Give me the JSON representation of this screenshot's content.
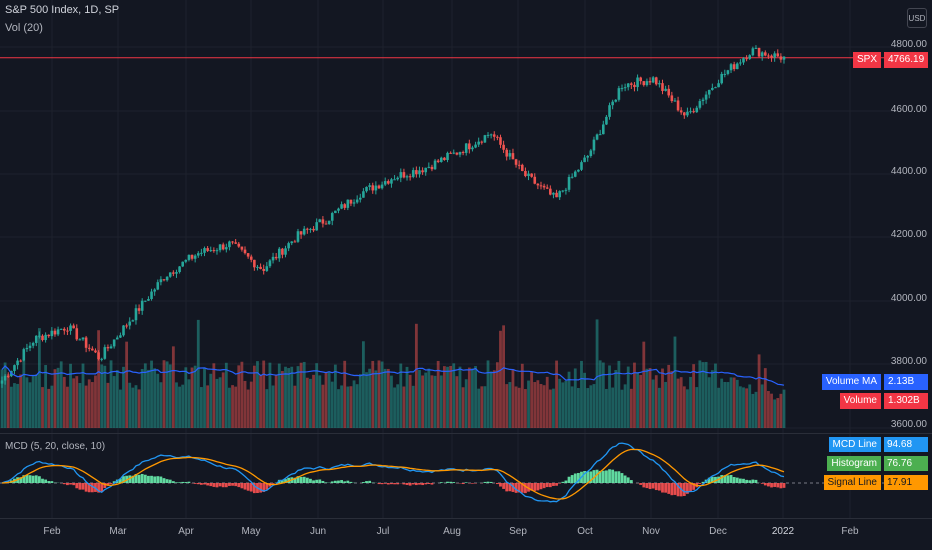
{
  "header": {
    "title": "S&P 500 Index, 1D, SP",
    "volume_title": "Vol (20)",
    "currency": "USD"
  },
  "price_axis": {
    "labels": [
      "4800.00",
      "4600.00",
      "4400.00",
      "4200.00",
      "4000.00",
      "3800.00",
      "3600.00"
    ]
  },
  "last_price": {
    "symbol": "SPX",
    "value": "4766.19",
    "color": "#f23645"
  },
  "volume_tags": {
    "ma_label": "Volume MA",
    "ma_value": "2.13B",
    "vol_label": "Volume",
    "vol_value": "1.302B",
    "ma_color": "#2962ff",
    "vol_color": "#f23645"
  },
  "macd": {
    "title": "MCD (5, 20, close, 10)",
    "line_label": "MCD Line",
    "line_value": "94.68",
    "hist_label": "Histogram",
    "hist_value": "76.76",
    "signal_label": "Signal Line",
    "signal_value": "17.91",
    "line_color": "#2196f3",
    "hist_color": "#4caf50",
    "signal_color": "#ff9800"
  },
  "time_axis": {
    "labels": [
      "Feb",
      "Mar",
      "Apr",
      "May",
      "Jun",
      "Jul",
      "Aug",
      "Sep",
      "Oct",
      "Nov",
      "Dec",
      "2022",
      "Feb"
    ]
  },
  "chart_data": {
    "type": "candlestick",
    "title": "S&P 500 Index, 1D, SP",
    "ylim": [
      3560,
      4850
    ],
    "x_ticks": [
      "Feb",
      "Mar",
      "Apr",
      "May",
      "Jun",
      "Jul",
      "Aug",
      "Sep",
      "Oct",
      "Nov",
      "Dec",
      "2022",
      "Feb"
    ],
    "close_points": [
      {
        "x": "Jan",
        "y": 3750
      },
      {
        "x": "Feb",
        "y": 3880
      },
      {
        "x": "Feb",
        "y": 3920
      },
      {
        "x": "Mar",
        "y": 3820
      },
      {
        "x": "Mar",
        "y": 3950
      },
      {
        "x": "Apr",
        "y": 4080
      },
      {
        "x": "Apr",
        "y": 4150
      },
      {
        "x": "May",
        "y": 4180
      },
      {
        "x": "May",
        "y": 4100
      },
      {
        "x": "Jun",
        "y": 4200
      },
      {
        "x": "Jun",
        "y": 4260
      },
      {
        "x": "Jul",
        "y": 4340
      },
      {
        "x": "Jul",
        "y": 4390
      },
      {
        "x": "Aug",
        "y": 4420
      },
      {
        "x": "Aug",
        "y": 4470
      },
      {
        "x": "Sep",
        "y": 4530
      },
      {
        "x": "Sep",
        "y": 4400
      },
      {
        "x": "Oct",
        "y": 4320
      },
      {
        "x": "Oct",
        "y": 4460
      },
      {
        "x": "Nov",
        "y": 4680
      },
      {
        "x": "Nov",
        "y": 4700
      },
      {
        "x": "Dec",
        "y": 4580
      },
      {
        "x": "Dec",
        "y": 4700
      },
      {
        "x": "2022",
        "y": 4790
      },
      {
        "x": "2022",
        "y": 4766
      }
    ],
    "volume_ma": 2.13,
    "volume_last": 1.302,
    "macd_line": 94.68,
    "histogram": 76.76,
    "signal_line": 17.91
  }
}
